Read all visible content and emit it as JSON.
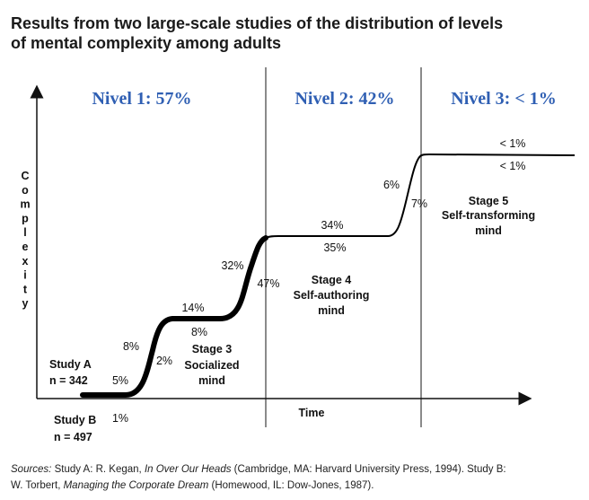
{
  "title_line1": "Results from two large-scale studies of the distribution of levels",
  "title_line2": "of mental complexity among adults",
  "levels": [
    {
      "label": "Nivel 1: 57%"
    },
    {
      "label": "Nivel 2: 42%"
    },
    {
      "label": "Nivel 3: < 1%"
    }
  ],
  "colors": {
    "level_text": "#2f5fb3",
    "divider": "#8a8a8a",
    "curve": "#000000"
  },
  "chart_data": {
    "type": "line",
    "xlabel": "Time",
    "ylabel": "Complexity",
    "grid": false,
    "studies": [
      {
        "name": "Study A",
        "n_label": "n = 342"
      },
      {
        "name": "Study B",
        "n_label": "n = 497"
      }
    ],
    "stages": [
      {
        "line1": "",
        "line2": "",
        "line3": "",
        "study_a": "5%",
        "study_b": "1%"
      },
      {
        "line1": "",
        "line2": "",
        "line3": "",
        "study_a": "8%",
        "study_b": "2%"
      },
      {
        "line1": "Stage 3",
        "line2": "Socialized",
        "line3": "mind",
        "study_a": "14%",
        "study_b": "8%"
      },
      {
        "line1": "",
        "line2": "",
        "line3": "",
        "study_a": "32%",
        "study_b": "47%"
      },
      {
        "line1": "Stage 4",
        "line2": "Self-authoring",
        "line3": "mind",
        "study_a": "34%",
        "study_b": "35%"
      },
      {
        "line1": "",
        "line2": "",
        "line3": "",
        "study_a": "6%",
        "study_b": "7%"
      },
      {
        "line1": "Stage 5",
        "line2": "Self-transforming",
        "line3": "mind",
        "study_a": "< 1%",
        "study_b": "< 1%"
      }
    ]
  },
  "sources": {
    "line1_label": "Sources:",
    "line1_a": " Study A: R. Kegan, ",
    "line1_book": "In Over Our Heads",
    "line1_b": " (Cambridge, MA: Harvard University Press, 1994). Study B:",
    "line2_a": "W. Torbert, ",
    "line2_book": "Managing the Corporate Dream",
    "line2_b": " (Homewood, IL: Dow-Jones, 1987)."
  }
}
